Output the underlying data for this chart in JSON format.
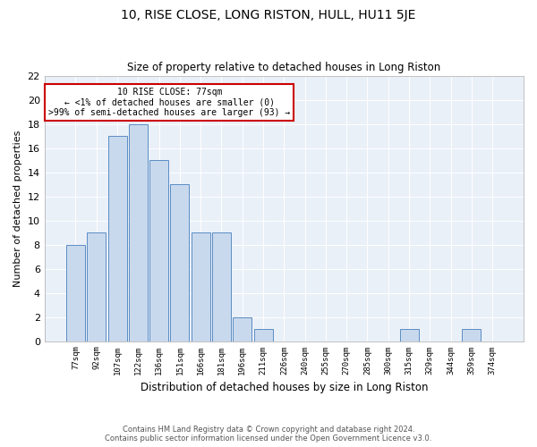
{
  "title": "10, RISE CLOSE, LONG RISTON, HULL, HU11 5JE",
  "subtitle": "Size of property relative to detached houses in Long Riston",
  "xlabel": "Distribution of detached houses by size in Long Riston",
  "ylabel": "Number of detached properties",
  "categories": [
    "77sqm",
    "92sqm",
    "107sqm",
    "122sqm",
    "136sqm",
    "151sqm",
    "166sqm",
    "181sqm",
    "196sqm",
    "211sqm",
    "226sqm",
    "240sqm",
    "255sqm",
    "270sqm",
    "285sqm",
    "300sqm",
    "315sqm",
    "329sqm",
    "344sqm",
    "359sqm",
    "374sqm"
  ],
  "values": [
    8,
    9,
    17,
    18,
    15,
    13,
    9,
    9,
    2,
    1,
    0,
    0,
    0,
    0,
    0,
    0,
    1,
    0,
    0,
    1,
    0
  ],
  "bar_fill": "#c9d9ed",
  "bar_edge": "#5b8dc4",
  "annotation_text": "10 RISE CLOSE: 77sqm\n← <1% of detached houses are smaller (0)\n>99% of semi-detached houses are larger (93) →",
  "annotation_box_edge": "#cc0000",
  "ylim": [
    0,
    22
  ],
  "yticks": [
    0,
    2,
    4,
    6,
    8,
    10,
    12,
    14,
    16,
    18,
    20,
    22
  ],
  "bg_color": "#eaf0f8",
  "footer_line1": "Contains HM Land Registry data © Crown copyright and database right 2024.",
  "footer_line2": "Contains public sector information licensed under the Open Government Licence v3.0."
}
